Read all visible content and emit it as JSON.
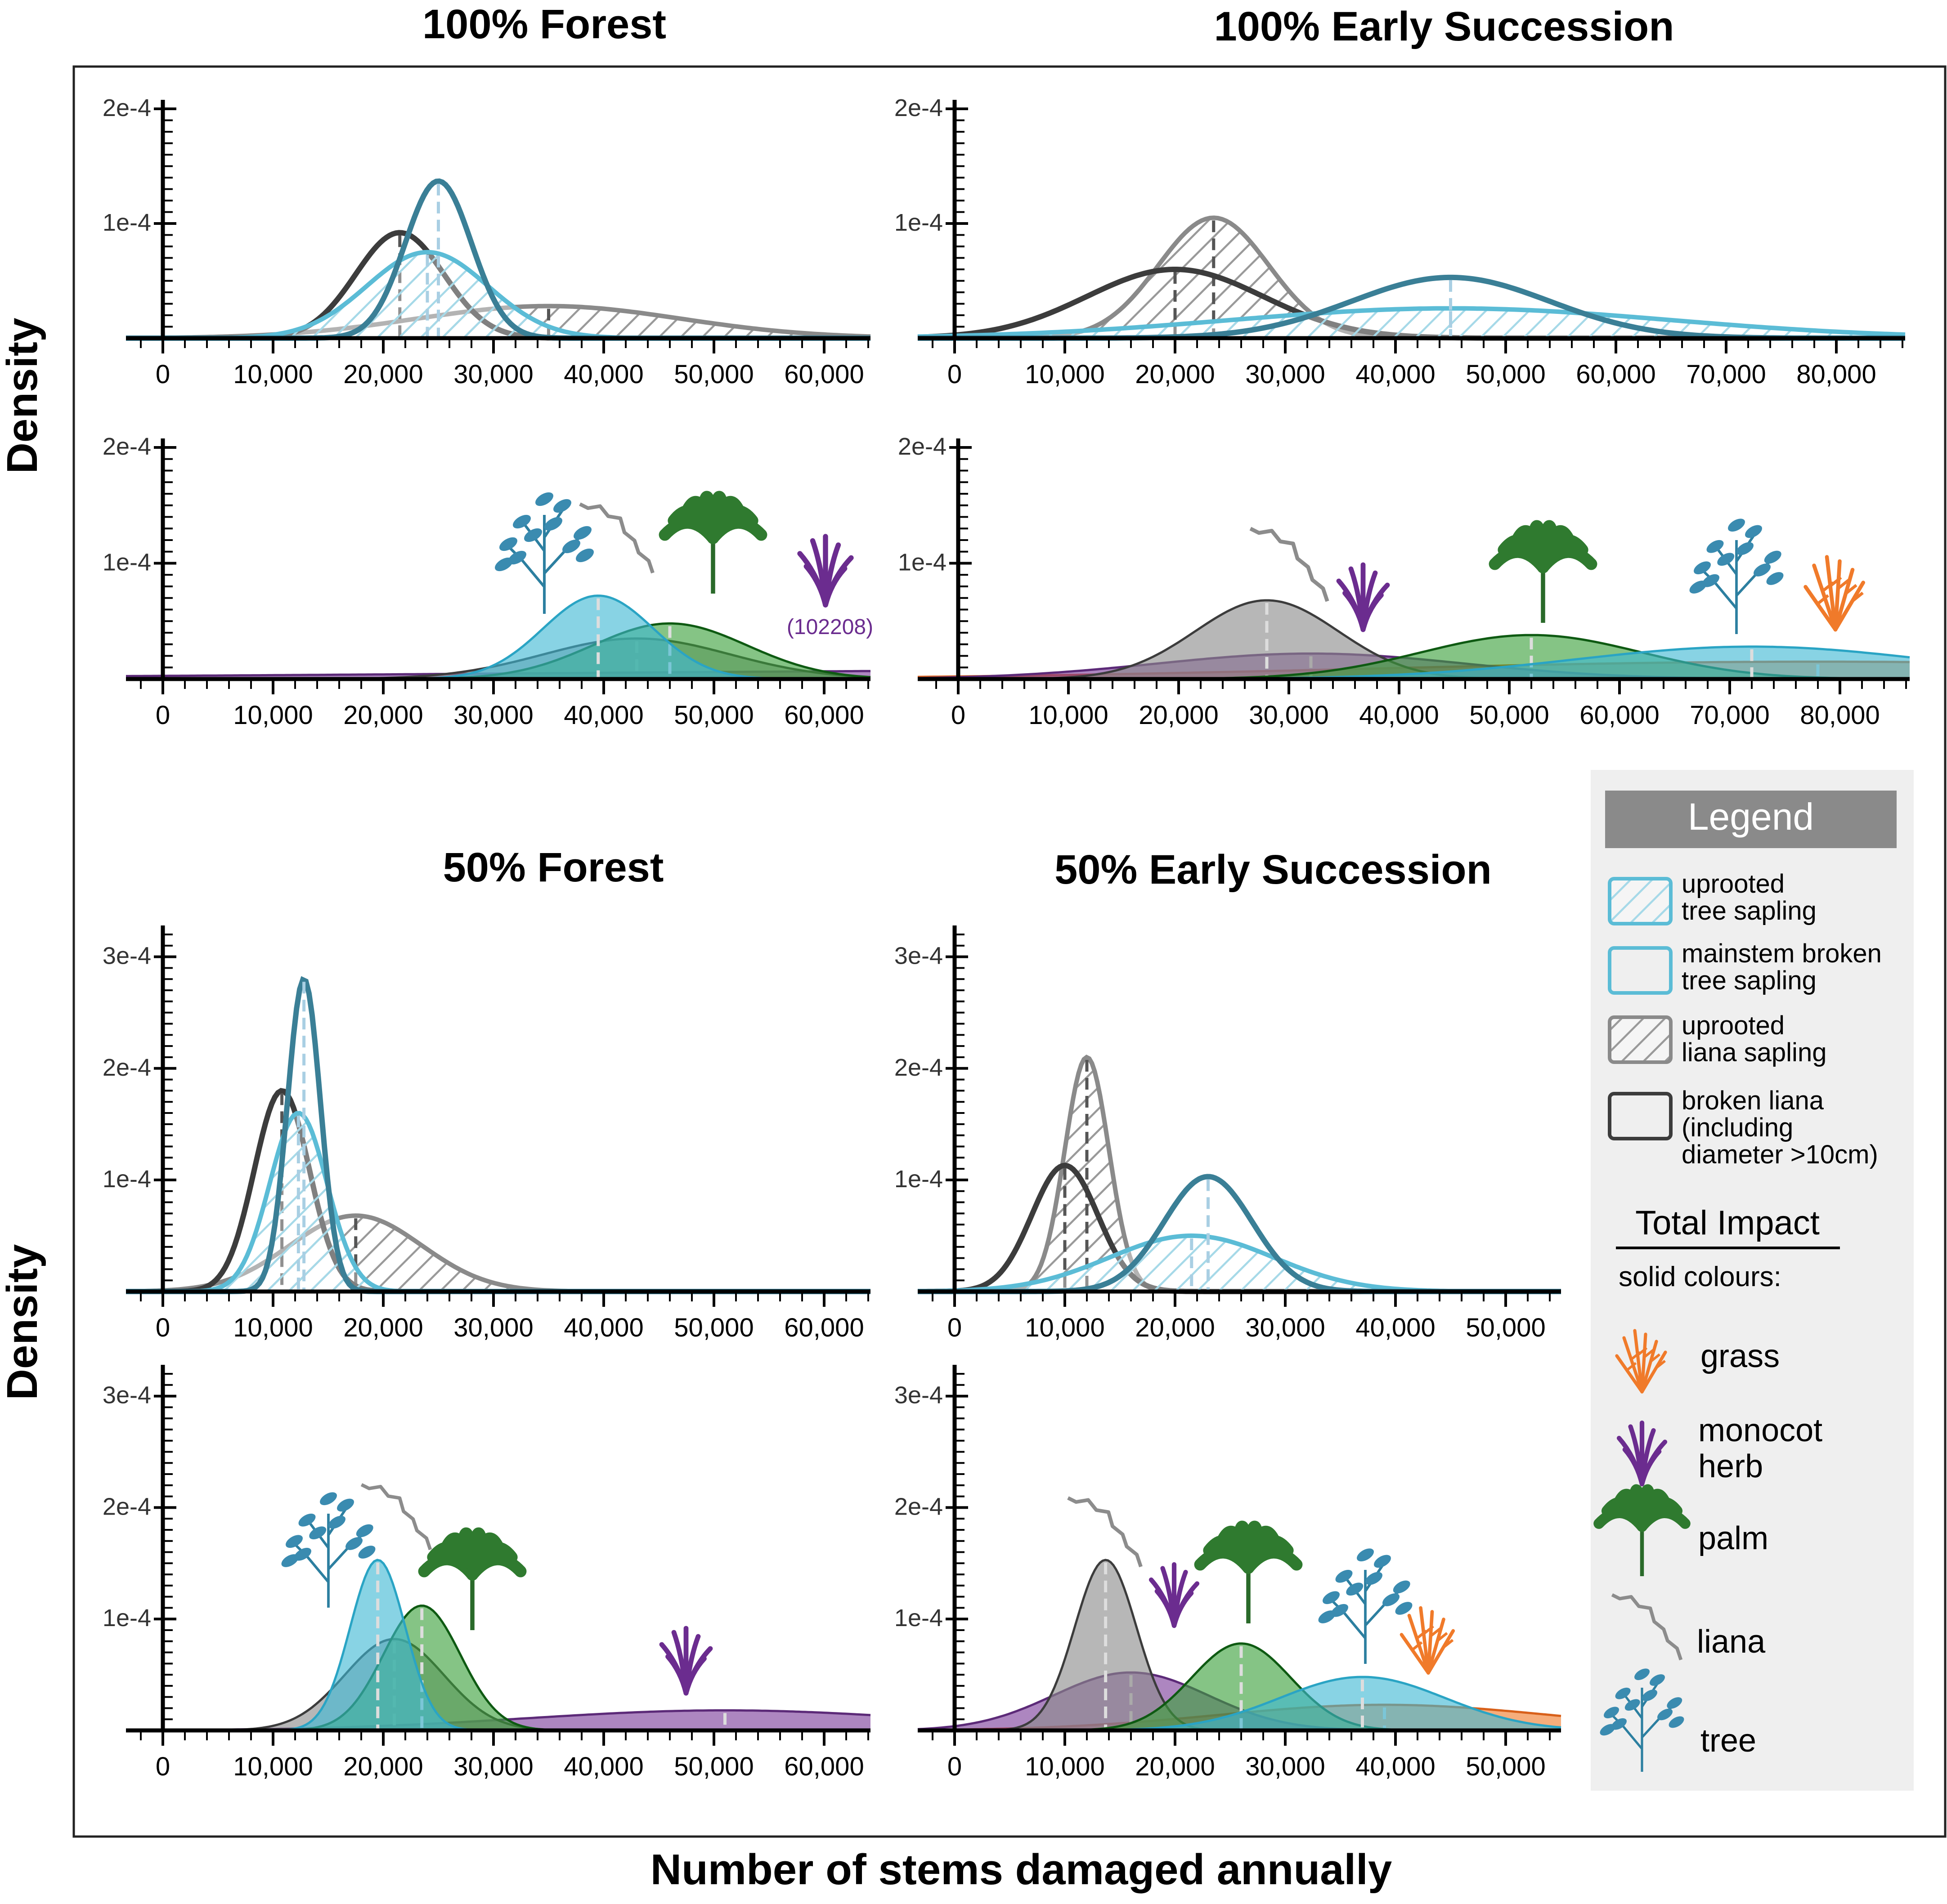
{
  "figure": {
    "x_axis_title": "Number of stems damaged annually",
    "y_axis_title_top": "Density",
    "y_axis_title_bottom": "Density"
  },
  "legend": {
    "title": "Legend",
    "items": [
      {
        "label_line1": "uprooted",
        "label_line2": "tree sapling",
        "label_line3": "",
        "color": "#5bbcd6",
        "hatched": true
      },
      {
        "label_line1": "mainstem broken",
        "label_line2": "tree sapling",
        "label_line3": "",
        "color": "#5bbcd6",
        "hatched": false
      },
      {
        "label_line1": "uprooted",
        "label_line2": "liana sapling",
        "label_line3": "",
        "color": "#8a8a8a",
        "hatched": true
      },
      {
        "label_line1": "broken liana",
        "label_line2": "(including",
        "label_line3": "diameter >10cm)",
        "color": "#3c3c3c",
        "hatched": false
      }
    ],
    "total_impact_title": "Total Impact",
    "total_impact_subtitle": "solid colours:",
    "impact_items": [
      {
        "label_line1": "grass",
        "label_line2": "",
        "icon": "grass-icon",
        "color": "#f07a2a"
      },
      {
        "label_line1": "monocot",
        "label_line2": "herb",
        "icon": "monocot-herb-icon",
        "color": "#6b2c8f"
      },
      {
        "label_line1": "palm",
        "label_line2": "",
        "icon": "palm-icon",
        "color": "#2f7a2f"
      },
      {
        "label_line1": "liana",
        "label_line2": "",
        "icon": "liana-icon",
        "color": "#8c8c8c"
      },
      {
        "label_line1": "tree",
        "label_line2": "",
        "icon": "tree-icon",
        "color": "#3a8bb0"
      }
    ]
  },
  "colors": {
    "tree": "#3fb8d4",
    "tree_dark": "#3a7f96",
    "liana": "#8a8a8a",
    "liana_dark": "#3c3c3c",
    "palm": "#3aa03a",
    "herb": "#7a3c9a",
    "grass": "#f07a2a"
  },
  "chart_data": [
    {
      "type": "density",
      "title": "100% Forest",
      "section": "top-left",
      "row": "damage types",
      "xlim": [
        -3000,
        63000
      ],
      "ylim": [
        0,
        0.0002
      ],
      "xticks": [
        0,
        10000,
        20000,
        30000,
        40000,
        50000,
        60000
      ],
      "xtick_labels": [
        "0",
        "10,000",
        "20,000",
        "30,000",
        "40,000",
        "50,000",
        "60,000"
      ],
      "ytick_labels": [
        "2e-4",
        "1e-4"
      ],
      "yticks": [
        0.0002,
        0.0001
      ],
      "series": [
        {
          "name": "uprooted liana sapling",
          "kind": "hatch",
          "color": "#8a8a8a",
          "mean": 35000,
          "sd": 12000,
          "peak": 2.8e-05
        },
        {
          "name": "broken liana",
          "kind": "line",
          "color": "#3c3c3c",
          "mean": 21500,
          "sd": 4000,
          "peak": 9.2e-05
        },
        {
          "name": "uprooted tree sapling",
          "kind": "hatch",
          "color": "#5bbcd6",
          "mean": 24000,
          "sd": 5500,
          "peak": 7.5e-05
        },
        {
          "name": "mainstem broken tree sapling",
          "kind": "line",
          "color": "#3a7f96",
          "mean": 25000,
          "sd": 3000,
          "peak": 0.000137
        }
      ]
    },
    {
      "type": "density",
      "title": "100% Early Succession",
      "section": "top-right",
      "row": "damage types",
      "xlim": [
        -3500,
        85000
      ],
      "ylim": [
        0,
        0.0002
      ],
      "xticks": [
        0,
        10000,
        20000,
        30000,
        40000,
        50000,
        60000,
        70000,
        80000
      ],
      "xtick_labels": [
        "0",
        "10,000",
        "20,000",
        "30,000",
        "40,000",
        "50,000",
        "60,000",
        "70,000",
        "80,000"
      ],
      "ytick_labels": [
        "2e-4",
        "1e-4"
      ],
      "yticks": [
        0.0002,
        0.0001
      ],
      "series": [
        {
          "name": "uprooted liana sapling",
          "kind": "hatch",
          "color": "#8a8a8a",
          "mean": 23500,
          "sd": 5000,
          "peak": 0.000105
        },
        {
          "name": "broken liana",
          "kind": "line",
          "color": "#3c3c3c",
          "mean": 20000,
          "sd": 8000,
          "peak": 6e-05
        },
        {
          "name": "uprooted tree sapling",
          "kind": "hatch",
          "color": "#5bbcd6",
          "mean": 45000,
          "sd": 20000,
          "peak": 2.6e-05
        },
        {
          "name": "mainstem broken tree sapling",
          "kind": "line",
          "color": "#3a7f96",
          "mean": 45000,
          "sd": 9000,
          "peak": 5.3e-05
        }
      ]
    },
    {
      "type": "density",
      "title": "",
      "section": "top-left",
      "row": "total impact",
      "xlim": [
        -3000,
        63000
      ],
      "ylim": [
        0,
        0.0002
      ],
      "xticks": [
        0,
        10000,
        20000,
        30000,
        40000,
        50000,
        60000
      ],
      "xtick_labels": [
        "0",
        "10,000",
        "20,000",
        "30,000",
        "40,000",
        "50,000",
        "60,000"
      ],
      "ytick_labels": [
        "2e-4",
        "1e-4"
      ],
      "yticks": [
        0.0002,
        0.0001
      ],
      "annotation": "(102208)",
      "series": [
        {
          "name": "monocot herb",
          "kind": "fill",
          "color": "#7a3c9a",
          "mean": 102208,
          "sd": 70000,
          "peak": 8e-06
        },
        {
          "name": "liana",
          "kind": "fill",
          "color": "#8a8a8a",
          "mean": 43000,
          "sd": 8500,
          "peak": 3.5e-05
        },
        {
          "name": "palm",
          "kind": "fill",
          "color": "#3aa03a",
          "mean": 46000,
          "sd": 7000,
          "peak": 4.8e-05
        },
        {
          "name": "tree",
          "kind": "fill",
          "color": "#3fb8d4",
          "mean": 39500,
          "sd": 5000,
          "peak": 7.2e-05
        }
      ]
    },
    {
      "type": "density",
      "title": "",
      "section": "top-right",
      "row": "total impact",
      "xlim": [
        -3500,
        85000
      ],
      "ylim": [
        0,
        0.0002
      ],
      "xticks": [
        0,
        10000,
        20000,
        30000,
        40000,
        50000,
        60000,
        70000,
        80000
      ],
      "xtick_labels": [
        "0",
        "10,000",
        "20,000",
        "30,000",
        "40,000",
        "50,000",
        "60,000",
        "70,000",
        "80,000"
      ],
      "ytick_labels": [
        "2e-4",
        "1e-4"
      ],
      "yticks": [
        0.0002,
        0.0001
      ],
      "series": [
        {
          "name": "grass",
          "kind": "fill",
          "color": "#f07a2a",
          "mean": 78000,
          "sd": 40000,
          "peak": 1.5e-05
        },
        {
          "name": "monocot herb",
          "kind": "fill",
          "color": "#7a3c9a",
          "mean": 32000,
          "sd": 14000,
          "peak": 2.2e-05
        },
        {
          "name": "liana",
          "kind": "fill",
          "color": "#8a8a8a",
          "mean": 28000,
          "sd": 6500,
          "peak": 6.8e-05
        },
        {
          "name": "palm",
          "kind": "fill",
          "color": "#3aa03a",
          "mean": 52000,
          "sd": 10000,
          "peak": 3.8e-05
        },
        {
          "name": "tree",
          "kind": "fill",
          "color": "#3fb8d4",
          "mean": 72000,
          "sd": 16000,
          "peak": 2.8e-05
        }
      ]
    },
    {
      "type": "density",
      "title": "50% Forest",
      "section": "bottom-left",
      "row": "damage types",
      "xlim": [
        -3000,
        63000
      ],
      "ylim": [
        0,
        0.00032
      ],
      "xticks": [
        0,
        10000,
        20000,
        30000,
        40000,
        50000,
        60000
      ],
      "xtick_labels": [
        "0",
        "10,000",
        "20,000",
        "30,000",
        "40,000",
        "50,000",
        "60,000"
      ],
      "ytick_labels": [
        "3e-4",
        "2e-4",
        "1e-4"
      ],
      "yticks": [
        0.0003,
        0.0002,
        0.0001
      ],
      "series": [
        {
          "name": "uprooted liana sapling",
          "kind": "hatch",
          "color": "#8a8a8a",
          "mean": 17500,
          "sd": 6000,
          "peak": 6.8e-05
        },
        {
          "name": "broken liana",
          "kind": "line",
          "color": "#3c3c3c",
          "mean": 10800,
          "sd": 2500,
          "peak": 0.00018
        },
        {
          "name": "uprooted tree sapling",
          "kind": "hatch",
          "color": "#5bbcd6",
          "mean": 12300,
          "sd": 2600,
          "peak": 0.00016
        },
        {
          "name": "mainstem broken tree sapling",
          "kind": "line",
          "color": "#3a7f96",
          "mean": 12800,
          "sd": 1500,
          "peak": 0.00028
        }
      ]
    },
    {
      "type": "density",
      "title": "50% Early Succession",
      "section": "bottom-right",
      "row": "damage types",
      "xlim": [
        -3500,
        54000
      ],
      "ylim": [
        0,
        0.00032
      ],
      "xticks": [
        0,
        10000,
        20000,
        30000,
        40000,
        50000
      ],
      "xtick_labels": [
        "0",
        "10,000",
        "20,000",
        "30,000",
        "40,000",
        "50,000"
      ],
      "ytick_labels": [
        "3e-4",
        "2e-4",
        "1e-4"
      ],
      "yticks": [
        0.0003,
        0.0002,
        0.0001
      ],
      "series": [
        {
          "name": "uprooted liana sapling",
          "kind": "hatch",
          "color": "#8a8a8a",
          "mean": 12000,
          "sd": 2000,
          "peak": 0.00021
        },
        {
          "name": "broken liana",
          "kind": "line",
          "color": "#3c3c3c",
          "mean": 10000,
          "sd": 3000,
          "peak": 0.000113
        },
        {
          "name": "uprooted tree sapling",
          "kind": "hatch",
          "color": "#5bbcd6",
          "mean": 21500,
          "sd": 7500,
          "peak": 5e-05
        },
        {
          "name": "mainstem broken tree sapling",
          "kind": "line",
          "color": "#3a7f96",
          "mean": 23000,
          "sd": 4000,
          "peak": 0.000103
        }
      ]
    },
    {
      "type": "density",
      "title": "",
      "section": "bottom-left",
      "row": "total impact",
      "xlim": [
        -3000,
        63000
      ],
      "ylim": [
        0,
        0.00032
      ],
      "xticks": [
        0,
        10000,
        20000,
        30000,
        40000,
        50000,
        60000
      ],
      "xtick_labels": [
        "0",
        "10,000",
        "20,000",
        "30,000",
        "40,000",
        "50,000",
        "60,000"
      ],
      "ytick_labels": [
        "3e-4",
        "2e-4",
        "1e-4"
      ],
      "yticks": [
        0.0003,
        0.0002,
        0.0001
      ],
      "series": [
        {
          "name": "monocot herb",
          "kind": "fill",
          "color": "#7a3c9a",
          "mean": 51000,
          "sd": 18000,
          "peak": 1.8e-05
        },
        {
          "name": "liana",
          "kind": "fill",
          "color": "#8a8a8a",
          "mean": 21000,
          "sd": 4500,
          "peak": 8.2e-05
        },
        {
          "name": "palm",
          "kind": "fill",
          "color": "#3aa03a",
          "mean": 23500,
          "sd": 3500,
          "peak": 0.000112
        },
        {
          "name": "tree",
          "kind": "fill",
          "color": "#3fb8d4",
          "mean": 19500,
          "sd": 2500,
          "peak": 0.000153
        }
      ]
    },
    {
      "type": "density",
      "title": "",
      "section": "bottom-right",
      "row": "total impact",
      "xlim": [
        -3500,
        54000
      ],
      "ylim": [
        0,
        0.00032
      ],
      "xticks": [
        0,
        10000,
        20000,
        30000,
        40000,
        50000
      ],
      "xtick_labels": [
        "0",
        "10,000",
        "20,000",
        "30,000",
        "40,000",
        "50,000"
      ],
      "ytick_labels": [
        "3e-4",
        "2e-4",
        "1e-4"
      ],
      "yticks": [
        0.0003,
        0.0002,
        0.0001
      ],
      "series": [
        {
          "name": "grass",
          "kind": "fill",
          "color": "#f07a2a",
          "mean": 39000,
          "sd": 15000,
          "peak": 2.3e-05
        },
        {
          "name": "monocot herb",
          "kind": "fill",
          "color": "#7a3c9a",
          "mean": 16000,
          "sd": 7000,
          "peak": 5.2e-05
        },
        {
          "name": "liana",
          "kind": "fill",
          "color": "#8a8a8a",
          "mean": 13700,
          "sd": 2800,
          "peak": 0.000153
        },
        {
          "name": "palm",
          "kind": "fill",
          "color": "#3aa03a",
          "mean": 26000,
          "sd": 4500,
          "peak": 7.8e-05
        },
        {
          "name": "tree",
          "kind": "fill",
          "color": "#3fb8d4",
          "mean": 37000,
          "sd": 7500,
          "peak": 4.8e-05
        }
      ]
    }
  ]
}
